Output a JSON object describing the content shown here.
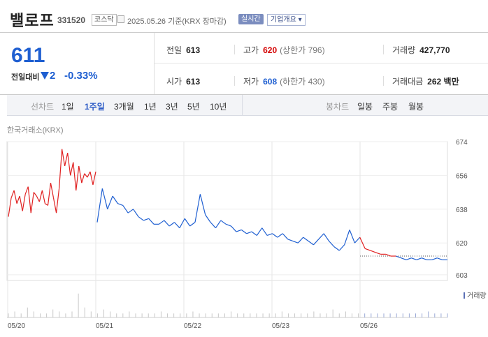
{
  "header": {
    "name": "밸로프",
    "code": "331520",
    "market": "코스닥",
    "date": "2025.05.26",
    "basis": "기준(KRX 장마감)",
    "realtime": "실시간",
    "corp_button": "기업개요"
  },
  "quote": {
    "price": "611",
    "change_label": "전일대비",
    "change": "2",
    "change_pct": "-0.33%",
    "prev_close_label": "전일",
    "prev_close": "613",
    "high_label": "고가",
    "high": "620",
    "upper_limit": "(상한가 796)",
    "volume_label": "거래량",
    "volume": "427,770",
    "open_label": "시가",
    "open": "613",
    "low_label": "저가",
    "low": "608",
    "lower_limit": "(하한가 430)",
    "value_label": "거래대금",
    "value": "262 백만"
  },
  "periods": {
    "line_label": "선차트",
    "line_items": [
      "1일",
      "1주일",
      "3개월",
      "1년",
      "3년",
      "5년",
      "10년"
    ],
    "selected": "1주일",
    "candle_label": "봉차트",
    "candle_items": [
      "일봉",
      "주봉",
      "월봉"
    ]
  },
  "source_label": "한국거래소(KRX)",
  "volume_legend": "거래량",
  "colors": {
    "up": "#e02020",
    "down": "#1f5fd1",
    "accent": "#2d5bc6"
  },
  "chart_data": {
    "type": "line",
    "x_labels": [
      "05/20",
      "05/21",
      "05/22",
      "05/23",
      "05/26"
    ],
    "y_ticks": [
      674,
      656,
      638,
      620,
      603
    ],
    "ylim": [
      600,
      674
    ],
    "reference_price": 613,
    "series": [
      {
        "values": [
          634,
          644,
          648,
          641,
          645,
          637,
          646,
          650,
          636,
          647,
          645,
          642,
          648,
          641,
          640,
          652,
          644,
          636,
          649,
          670,
          661,
          668,
          656,
          663,
          648,
          661,
          652,
          657,
          655,
          658,
          651,
          658
        ]
      },
      {
        "values": [
          631,
          649,
          638,
          645,
          641,
          640,
          636,
          638,
          634,
          632,
          633,
          630,
          630,
          632,
          629,
          631,
          628,
          633,
          629,
          631,
          646,
          635,
          631,
          628,
          632,
          630,
          629,
          626,
          627,
          625,
          626,
          624,
          628,
          624,
          625,
          623,
          625,
          622,
          621,
          620,
          623,
          621,
          619,
          622,
          625,
          621,
          618,
          616,
          619,
          627,
          620,
          623,
          617,
          616,
          615,
          614,
          614,
          613,
          613,
          612,
          611,
          612,
          611,
          612,
          611,
          611,
          612,
          611,
          611
        ]
      }
    ],
    "volume": [
      2,
      3,
      2,
      5,
      3,
      2,
      2,
      4,
      3,
      2,
      3,
      12,
      5,
      3,
      2,
      4,
      3,
      2,
      2,
      3,
      2,
      2,
      2,
      2,
      3,
      2,
      2,
      2,
      2,
      3,
      2,
      2,
      2,
      2,
      2,
      3,
      2,
      2,
      2,
      2,
      2,
      2,
      2,
      3,
      2,
      2,
      2,
      2,
      3,
      2,
      2,
      4,
      2,
      3,
      2,
      2,
      2,
      2,
      2,
      2,
      2,
      2,
      2,
      2,
      2,
      2,
      3,
      2,
      2,
      2
    ]
  }
}
